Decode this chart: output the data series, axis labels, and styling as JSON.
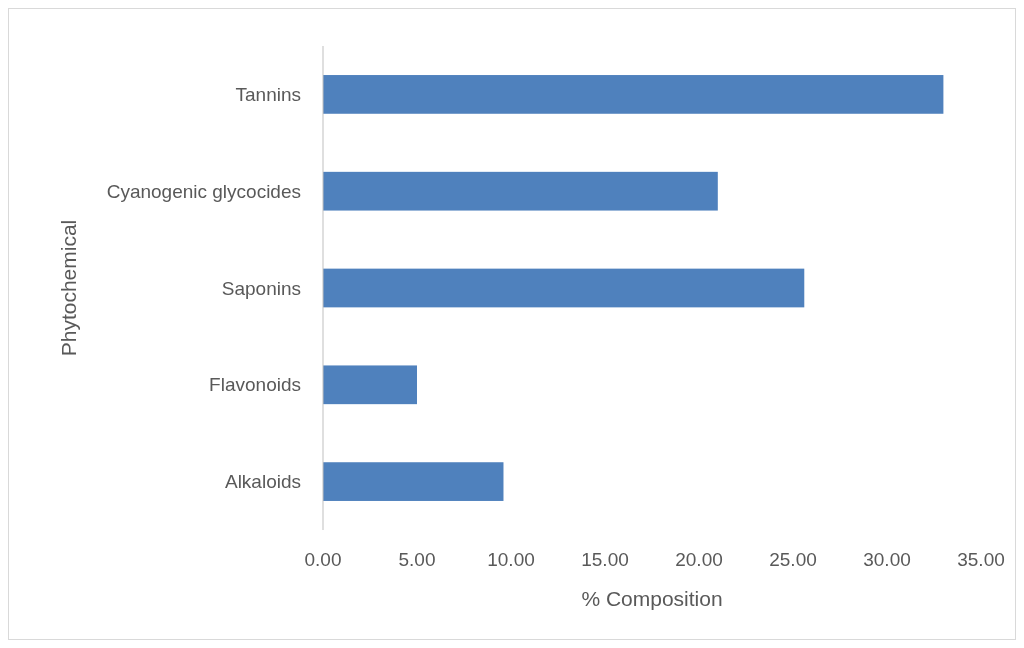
{
  "chart_data": {
    "type": "bar",
    "orientation": "horizontal",
    "xlabel": "% Composition",
    "ylabel": "Phytochemical",
    "categories": [
      "Tannins",
      "Cyanogenic glycocides",
      "Saponins",
      "Flavonoids",
      "Alkaloids"
    ],
    "values": [
      33.0,
      21.0,
      25.6,
      5.0,
      9.6
    ],
    "color": "#4f81bd",
    "xlim": [
      0,
      35
    ],
    "xticks": [
      {
        "value": 0,
        "label": "0.00"
      },
      {
        "value": 5,
        "label": "5.00"
      },
      {
        "value": 10,
        "label": "10.00"
      },
      {
        "value": 15,
        "label": "15.00"
      },
      {
        "value": 20,
        "label": "20.00"
      },
      {
        "value": 25,
        "label": "25.00"
      },
      {
        "value": 30,
        "label": "30.00"
      },
      {
        "value": 35,
        "label": "35.00"
      }
    ],
    "grid": false
  }
}
